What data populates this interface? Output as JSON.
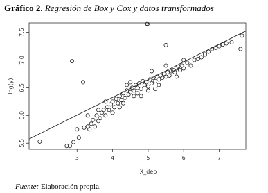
{
  "chart_data": {
    "type": "scatter",
    "label": "Gráfico 2.",
    "title": "Regresión de Box y Cox  y datos transformados",
    "xlabel": "X_dep",
    "ylabel": "log(y)",
    "source_label": "Fuente:",
    "source": "Elaboración propia.",
    "color": "#222222",
    "xlim": [
      1.65,
      7.75
    ],
    "ylim": [
      5.39,
      7.67
    ],
    "xticks": [
      3,
      4,
      5,
      6,
      7
    ],
    "yticks": [
      5.5,
      {
        "value": 6,
        "label": "6.0"
      },
      6.5,
      {
        "value": 7,
        "label": "7.0"
      },
      7.5
    ],
    "x": [
      2.71,
      2.8,
      2.9,
      3.05,
      3.2,
      3.3,
      3.35,
      3.4,
      3.45,
      3.5,
      3.55,
      3.6,
      3.65,
      3.7,
      3.75,
      3.8,
      3.85,
      3.9,
      3.95,
      4.0,
      4.05,
      4.1,
      4.15,
      4.2,
      4.25,
      4.3,
      4.35,
      4.4,
      4.45,
      4.5,
      4.55,
      4.6,
      4.65,
      4.7,
      4.75,
      4.8,
      4.85,
      4.9,
      4.95,
      5.0,
      5.05,
      5.1,
      5.15,
      5.2,
      5.25,
      5.3,
      5.35,
      5.4,
      5.45,
      5.5,
      5.55,
      5.6,
      5.65,
      5.7,
      5.75,
      5.8,
      5.85,
      5.9,
      5.95,
      6.0,
      6.1,
      6.2,
      6.3,
      6.4,
      6.5,
      6.6,
      6.7,
      6.8,
      6.9,
      7.0,
      7.1,
      7.2,
      7.35,
      4.0,
      4.2,
      4.3,
      4.5,
      4.6,
      4.8,
      5.0,
      5.1,
      5.3,
      5.5,
      5.8,
      6.0,
      3.8,
      3.6,
      3.3,
      4.4,
      4.7,
      5.2,
      1.95,
      2.86,
      3.17,
      4.96,
      4.98,
      5.5,
      7.64,
      7.6,
      3.0
    ],
    "y": [
      5.45,
      5.45,
      5.52,
      5.6,
      5.78,
      5.8,
      5.75,
      5.85,
      5.92,
      5.8,
      6.0,
      5.9,
      5.95,
      6.05,
      6.1,
      6.0,
      6.15,
      6.1,
      6.2,
      6.25,
      6.15,
      6.3,
      6.22,
      6.35,
      6.28,
      6.4,
      6.32,
      6.45,
      6.38,
      6.42,
      6.5,
      6.45,
      6.55,
      6.5,
      6.58,
      6.48,
      6.62,
      6.55,
      6.6,
      6.52,
      6.65,
      6.58,
      6.68,
      6.62,
      6.7,
      6.65,
      6.72,
      6.68,
      6.75,
      6.7,
      6.78,
      6.72,
      6.8,
      6.82,
      6.78,
      6.85,
      6.88,
      6.82,
      6.9,
      6.85,
      6.95,
      6.9,
      7.0,
      7.02,
      7.05,
      7.1,
      7.15,
      7.2,
      7.22,
      7.25,
      7.28,
      7.3,
      7.32,
      6.05,
      6.15,
      6.22,
      6.6,
      6.35,
      6.35,
      6.45,
      6.8,
      6.55,
      6.9,
      6.7,
      7.0,
      6.25,
      6.1,
      6.0,
      6.55,
      6.4,
      6.48,
      5.53,
      6.98,
      6.6,
      7.66,
      7.65,
      7.27,
      7.44,
      7.2,
      5.75
    ],
    "regression_line": {
      "x": [
        1.65,
        7.75
      ],
      "y": [
        5.575,
        7.525
      ]
    }
  }
}
